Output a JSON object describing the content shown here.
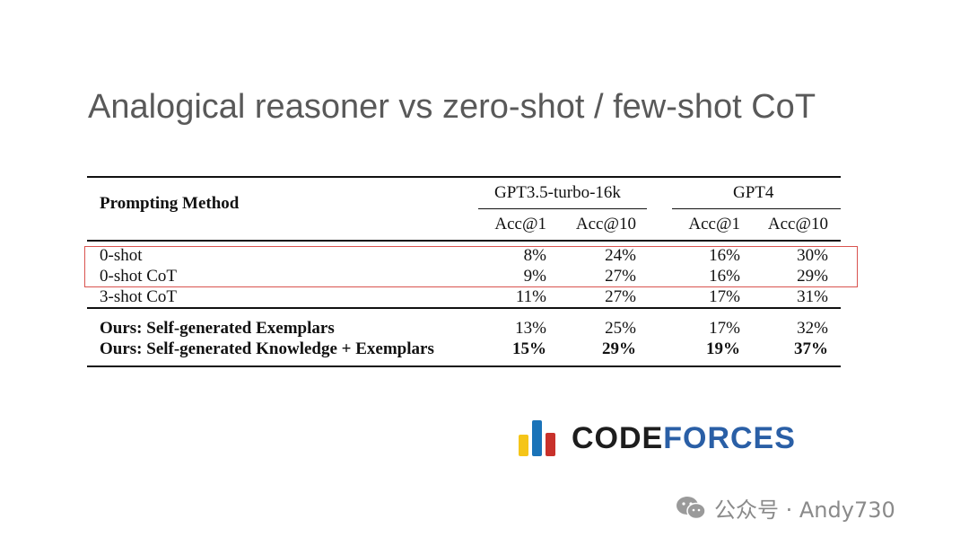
{
  "slide": {
    "title": "Analogical reasoner vs zero-shot / few-shot CoT"
  },
  "table": {
    "method_header": "Prompting Method",
    "groups": [
      {
        "name": "GPT3.5-turbo-16k",
        "columns": [
          "Acc@1",
          "Acc@10"
        ]
      },
      {
        "name": "GPT4",
        "columns": [
          "Acc@1",
          "Acc@10"
        ]
      }
    ],
    "rows": [
      {
        "method": "0-shot",
        "values": [
          "8%",
          "24%",
          "16%",
          "30%"
        ]
      },
      {
        "method": "0-shot CoT",
        "values": [
          "9%",
          "27%",
          "16%",
          "29%"
        ]
      },
      {
        "method": "3-shot CoT",
        "values": [
          "11%",
          "27%",
          "17%",
          "31%"
        ]
      },
      {
        "method": "Ours: Self-generated Exemplars",
        "values": [
          "13%",
          "25%",
          "17%",
          "32%"
        ]
      },
      {
        "method": "Ours: Self-generated Knowledge + Exemplars",
        "values": [
          "15%",
          "29%",
          "19%",
          "37%"
        ]
      }
    ],
    "highlight_color": "#d9534f"
  },
  "logo": {
    "text_dark": "CODE",
    "text_blue": "FORCES",
    "colors": [
      "#f5c518",
      "#1a73b8",
      "#c8312b"
    ]
  },
  "watermark": {
    "icon": "wechat-icon",
    "text": "公众号 · Andy730"
  }
}
